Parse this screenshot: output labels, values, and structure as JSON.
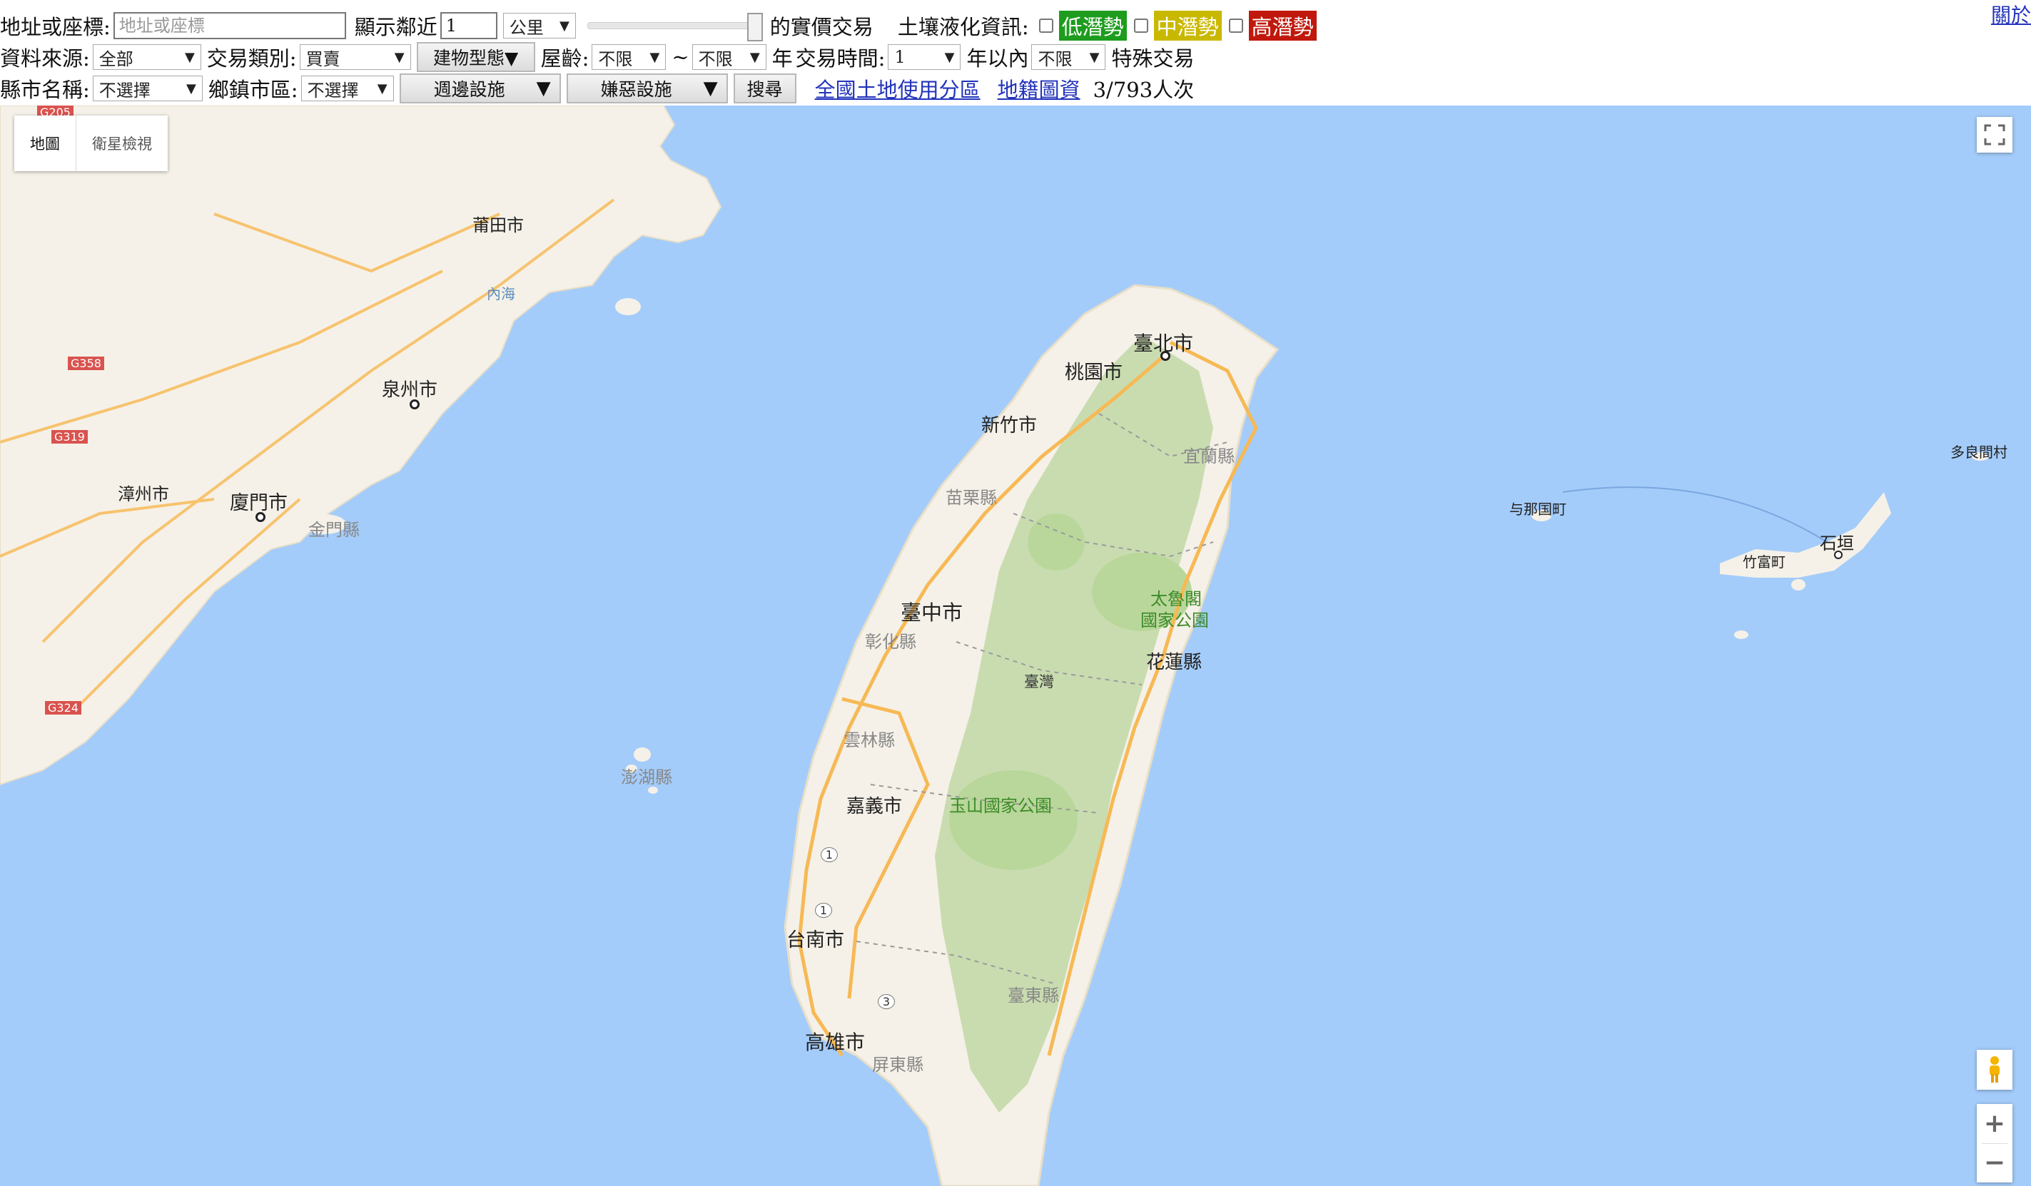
{
  "toolbar": {
    "address_label": "地址或座標:",
    "address_placeholder": "地址或座標",
    "show_near_label": "顯示鄰近",
    "radius_value": "1",
    "unit_value": "公里",
    "price_label": "的實價交易",
    "soil_label": "土壤液化資訊:",
    "soil_low": "低潛勢",
    "soil_mid": "中潛勢",
    "soil_high": "高潛勢",
    "about_link": "關於",
    "source_label": "資料來源:",
    "source_value": "全部",
    "trade_type_label": "交易類別:",
    "trade_type_value": "買賣",
    "building_type_button": "建物型態▼",
    "age_label": "屋齡:",
    "age_from": "不限",
    "tilde": "~",
    "age_to": "不限",
    "year_unit": "年",
    "trade_time_label": "交易時間:",
    "trade_time_value": "1",
    "within_years": "年以內",
    "special_value": "不限",
    "special_label": "特殊交易",
    "county_label": "縣市名稱:",
    "county_value": "不選擇",
    "town_label": "鄉鎮市區:",
    "town_value": "不選擇",
    "nearby_button": "週邊設施",
    "nuisance_button": "嫌惡設施",
    "search_button": "搜尋",
    "landuse_link": "全國土地使用分區",
    "cadastral_link": "地籍圖資",
    "visitor_count": "3/793人次"
  },
  "map": {
    "type_map": "地圖",
    "type_satellite": "衛星檢視",
    "zoom_in": "+",
    "zoom_out": "−",
    "labels": {
      "putian": "莆田市",
      "quanzhou": "泉州市",
      "zhangzhou": "漳州市",
      "xiamen": "廈門市",
      "jinmen": "金門縣",
      "neihai": "內海",
      "penghu": "澎湖縣",
      "taipei": "臺北市",
      "taoyuan": "桃園市",
      "hsinchu": "新竹市",
      "yilan": "宜蘭縣",
      "miaoli": "苗栗縣",
      "taichung": "臺中市",
      "changhua": "彰化縣",
      "taroko1": "太魯閣",
      "taroko2": "國家公園",
      "hualien": "花蓮縣",
      "taiwan": "臺灣",
      "yunlin": "雲林縣",
      "chiayi": "嘉義市",
      "yushan": "玉山國家公園",
      "tainan": "台南市",
      "taitung": "臺東縣",
      "kaohsiung": "高雄市",
      "pingtung": "屏東縣",
      "yonaguni": "与那国町",
      "taketomi": "竹富町",
      "ishigaki": "石垣",
      "tarama": "多良間村",
      "hw_g205": "G205",
      "hw_g358": "G358",
      "hw_g319": "G319",
      "hw_g324": "G324",
      "hw_1a": "1",
      "hw_1b": "1",
      "hw_3": "3"
    }
  },
  "colors": {
    "water": "#a4ccfa",
    "land": "#f5f1e8",
    "mountain": "#c9dcb0",
    "park": "#b9d79a",
    "road": "#f7b955",
    "soil_low": "#1e9c1e",
    "soil_mid": "#c9b800",
    "soil_high": "#c0180c",
    "link": "#2233bb"
  }
}
